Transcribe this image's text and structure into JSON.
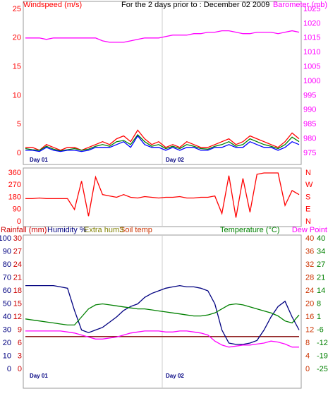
{
  "chart_data": [
    {
      "type": "line",
      "title": "For the 2 days prior to : December 02 2009",
      "day_labels": [
        "Day 01",
        "Day 02"
      ],
      "axes": [
        {
          "label": "Windspeed (m/s)",
          "color": "#ff0000",
          "lim": [
            0,
            25
          ],
          "ticks": [
            0,
            5,
            10,
            15,
            20,
            25
          ]
        },
        {
          "label": "Barometer (mb)",
          "color": "#ff00ff",
          "lim": [
            975,
            1025
          ],
          "ticks": [
            975,
            980,
            985,
            990,
            995,
            1000,
            1005,
            1010,
            1015,
            1020,
            1025
          ]
        }
      ],
      "series": [
        {
          "color": "#ff0000",
          "axis": 0,
          "values": [
            1,
            1,
            0.5,
            1.5,
            1,
            0.5,
            1,
            1,
            0.5,
            1,
            1.5,
            2,
            1.5,
            2.5,
            3,
            2,
            4,
            2.5,
            1.5,
            2,
            1,
            1.5,
            1,
            2,
            1.5,
            1,
            1,
            1.5,
            2,
            2.5,
            1.5,
            2,
            3,
            2.5,
            2,
            1.5,
            1,
            2,
            3.5,
            2.5
          ]
        },
        {
          "color": "#008000",
          "axis": 0,
          "values": [
            0.8,
            0.6,
            0.5,
            1.2,
            0.7,
            0.4,
            0.6,
            0.8,
            0.5,
            0.7,
            1.2,
            1.5,
            1.2,
            2,
            2.2,
            1.5,
            3.2,
            2,
            1.2,
            1.5,
            0.8,
            1.2,
            0.8,
            1.5,
            1.2,
            0.8,
            0.7,
            1.2,
            1.5,
            2,
            1.2,
            1.5,
            2.5,
            2,
            1.5,
            1.2,
            0.8,
            1.5,
            2.8,
            2
          ]
        },
        {
          "color": "#0000ff",
          "axis": 0,
          "values": [
            0.5,
            0.5,
            0.3,
            1,
            0.5,
            0.3,
            0.5,
            0.5,
            0.3,
            0.5,
            1,
            1,
            1,
            1.5,
            2,
            1,
            3,
            1.5,
            1,
            1,
            0.5,
            1,
            0.5,
            1,
            1,
            0.5,
            0.5,
            1,
            1,
            1.5,
            1,
            1,
            2,
            1.5,
            1,
            1,
            0.5,
            1,
            2,
            1.5
          ]
        },
        {
          "color": "#ff00ff",
          "axis": 1,
          "values": [
            1015,
            1015,
            1015,
            1014.5,
            1015,
            1015,
            1015,
            1015,
            1015,
            1015,
            1015,
            1014,
            1013.5,
            1013.5,
            1013.5,
            1014,
            1014.5,
            1015,
            1015,
            1015,
            1015.5,
            1016,
            1016,
            1016,
            1016.5,
            1016.5,
            1017,
            1017,
            1017.5,
            1017.5,
            1017,
            1016.5,
            1016.5,
            1017,
            1017,
            1017,
            1016.5,
            1017,
            1017.5,
            1017
          ]
        }
      ]
    },
    {
      "type": "line",
      "axes": [
        {
          "color": "#ff0000",
          "lim": [
            0,
            360
          ],
          "ticks": [
            0,
            90,
            180,
            270,
            360
          ]
        },
        {
          "color": "#ff0000",
          "lim": [
            0,
            360
          ],
          "ticks": [
            {
              "value": 0,
              "label": "N"
            },
            {
              "value": 90,
              "label": "E"
            },
            {
              "value": 180,
              "label": "S"
            },
            {
              "value": 270,
              "label": "W"
            },
            {
              "value": 360,
              "label": "N"
            }
          ]
        }
      ],
      "series": [
        {
          "color": "#ff0000",
          "axis": 0,
          "values": [
            170,
            170,
            175,
            170,
            170,
            170,
            170,
            90,
            300,
            40,
            330,
            200,
            190,
            180,
            200,
            180,
            175,
            185,
            180,
            175,
            180,
            180,
            185,
            175,
            175,
            180,
            180,
            190,
            60,
            340,
            30,
            320,
            70,
            350,
            360,
            360,
            360,
            120,
            230,
            200
          ]
        }
      ]
    },
    {
      "type": "line",
      "day_labels": [
        "Day 01",
        "Day 02"
      ],
      "extra_label": "Extra hum3",
      "extra_color": "#808000",
      "axes": [
        {
          "label": "Rainfall (mm)",
          "color": "#cc0000",
          "lim": [
            0,
            30
          ],
          "ticks": [
            0,
            3,
            6,
            9,
            12,
            15,
            18,
            21,
            24,
            27,
            30
          ]
        },
        {
          "label": "Humidity %",
          "color": "#000080",
          "lim": [
            0,
            100
          ],
          "ticks": [
            0,
            10,
            20,
            30,
            40,
            50,
            60,
            70,
            80,
            90,
            100
          ]
        },
        {
          "label": "Soil temp",
          "color": "#cc3300",
          "lim": [
            0,
            40
          ],
          "ticks": [
            0,
            4,
            8,
            12,
            16,
            20,
            24,
            28,
            32,
            36,
            40
          ]
        },
        {
          "label": "Temperature (°C)",
          "color": "#008000",
          "lim": [
            -25,
            40
          ],
          "ticks": [
            -25,
            {
              "value": -18.5,
              "label": "-19"
            },
            -12,
            {
              "value": -5.5,
              "label": "-6"
            },
            1,
            {
              "value": 7.5,
              "label": "8"
            },
            14,
            {
              "value": 20.5,
              "label": "21"
            },
            27,
            {
              "value": 33.5,
              "label": "34"
            },
            40
          ]
        }
      ],
      "series": [
        {
          "color": "#800000",
          "axis": 0,
          "values": [
            7.5,
            7.5,
            7.5,
            7.5,
            7.5,
            7.5,
            7.5,
            7.5,
            7.5,
            7.5,
            7.5,
            7.5,
            7.5,
            7.5,
            7.5,
            7.5,
            7.5,
            7.5,
            7.5,
            7.5,
            7.5,
            7.5,
            7.5,
            7.5,
            7.5,
            7.5,
            7.5,
            7.5,
            7.5,
            7.5,
            7.5,
            7.5,
            7.5,
            7.5,
            7.5,
            7.5,
            7.5,
            7.5,
            7.5,
            7.5
          ]
        },
        {
          "color": "#000080",
          "axis": 1,
          "values": [
            64,
            64,
            64,
            64,
            64,
            63,
            62,
            45,
            30,
            28,
            30,
            32,
            36,
            40,
            45,
            48,
            50,
            55,
            58,
            60,
            62,
            63,
            64,
            63,
            63,
            62,
            60,
            50,
            30,
            20,
            19,
            19,
            20,
            22,
            30,
            40,
            48,
            52,
            40,
            30
          ]
        },
        {
          "color": "#008000",
          "axis": 3,
          "values": [
            0,
            -0.5,
            -1,
            -1.5,
            -2,
            -2.5,
            -3,
            -3,
            1,
            5,
            7,
            7.5,
            7,
            6.5,
            6,
            5.5,
            5,
            5,
            4.5,
            4,
            3.5,
            3,
            2.5,
            2,
            1.5,
            1.5,
            2,
            3,
            5,
            7,
            7.5,
            7,
            6,
            5,
            4,
            3,
            1.5,
            -1,
            -2,
            2
          ]
        },
        {
          "name": "Dew Point",
          "color": "#ff00ff",
          "axis": 3,
          "values": [
            -6,
            -6,
            -6,
            -6,
            -6,
            -6,
            -6.5,
            -7,
            -8,
            -9,
            -10,
            -10,
            -9.5,
            -9,
            -8,
            -7,
            -6.5,
            -6,
            -6,
            -6,
            -6.5,
            -6.5,
            -6,
            -6,
            -6.5,
            -7,
            -8,
            -11,
            -13,
            -14,
            -13.5,
            -13,
            -13,
            -12.5,
            -12,
            -11,
            -11.5,
            -12.5,
            -14,
            -14
          ]
        }
      ]
    }
  ]
}
